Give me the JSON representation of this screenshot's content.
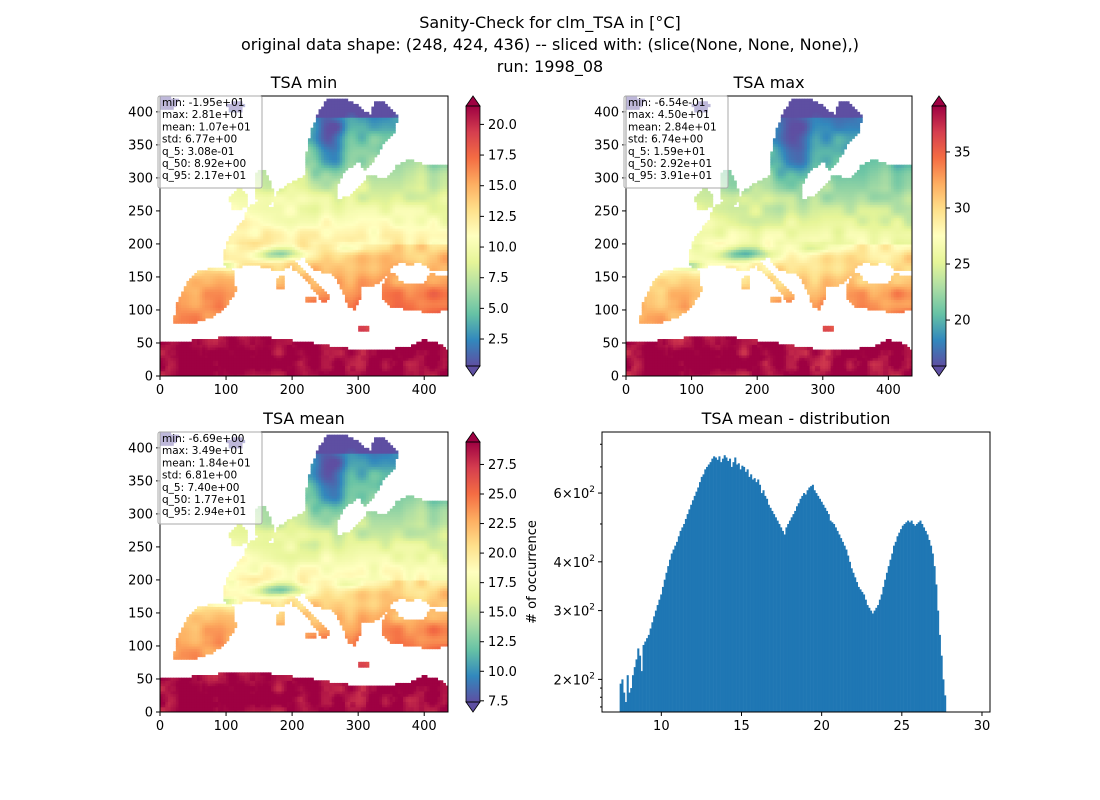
{
  "figure": {
    "title_lines": [
      "Sanity-Check for clm_TSA in [°C]",
      "original data shape: (248, 424, 436) -- sliced with: (slice(None, None, None),)",
      "run: 1998_08"
    ]
  },
  "colormap": {
    "name": "Spectral_r",
    "stops": [
      "#5e4fa2",
      "#3288bd",
      "#66c2a5",
      "#abdda4",
      "#e6f598",
      "#ffffbf",
      "#fee08b",
      "#fdae61",
      "#f46d43",
      "#d53e4f",
      "#9e0142"
    ]
  },
  "chart_data": [
    {
      "type": "heatmap",
      "title": "TSA min",
      "xlim": [
        0,
        436
      ],
      "ylim": [
        0,
        424
      ],
      "xticks": [
        0,
        100,
        200,
        300,
        400
      ],
      "yticks": [
        0,
        50,
        100,
        150,
        200,
        250,
        300,
        350,
        400
      ],
      "colorbar": {
        "range": [
          0.3,
          21.5
        ],
        "ticks": [
          "2.5",
          "5.0",
          "7.5",
          "10.0",
          "12.5",
          "15.0",
          "17.5",
          "20.0"
        ],
        "tick_values": [
          2.5,
          5.0,
          7.5,
          10.0,
          12.5,
          15.0,
          17.5,
          20.0
        ]
      },
      "stats": [
        "min: -1.95e+01",
        "max: 2.81e+01",
        "mean: 1.07e+01",
        "std: 6.77e+00",
        "q_5: 3.08e-01",
        "q_50: 8.92e+00",
        "q_95: 2.17e+01"
      ]
    },
    {
      "type": "heatmap",
      "title": "TSA max",
      "xlim": [
        0,
        436
      ],
      "ylim": [
        0,
        424
      ],
      "xticks": [
        0,
        100,
        200,
        300,
        400
      ],
      "yticks": [
        0,
        50,
        100,
        150,
        200,
        250,
        300,
        350,
        400
      ],
      "colorbar": {
        "range": [
          15.9,
          39.1
        ],
        "ticks": [
          "20",
          "25",
          "30",
          "35"
        ],
        "tick_values": [
          20,
          25,
          30,
          35
        ]
      },
      "stats": [
        "min: -6.54e-01",
        "max: 4.50e+01",
        "mean: 2.84e+01",
        "std: 6.74e+00",
        "q_5: 1.59e+01",
        "q_50: 2.92e+01",
        "q_95: 3.91e+01"
      ]
    },
    {
      "type": "heatmap",
      "title": "TSA mean",
      "xlim": [
        0,
        436
      ],
      "ylim": [
        0,
        424
      ],
      "xticks": [
        0,
        100,
        200,
        300,
        400
      ],
      "yticks": [
        0,
        50,
        100,
        150,
        200,
        250,
        300,
        350,
        400
      ],
      "colorbar": {
        "range": [
          7.4,
          29.4
        ],
        "ticks": [
          "7.5",
          "10.0",
          "12.5",
          "15.0",
          "17.5",
          "20.0",
          "22.5",
          "25.0",
          "27.5"
        ],
        "tick_values": [
          7.5,
          10.0,
          12.5,
          15.0,
          17.5,
          20.0,
          22.5,
          25.0,
          27.5
        ]
      },
      "stats": [
        "min: -6.69e+00",
        "max: 3.49e+01",
        "mean: 1.84e+01",
        "std: 6.81e+00",
        "q_5: 7.40e+00",
        "q_50: 1.77e+01",
        "q_95: 2.94e+01"
      ]
    },
    {
      "type": "bar",
      "title": "TSA mean - distribution",
      "ylabel": "# of occurrence",
      "yscale": "log",
      "color": "#1f77b4",
      "xlim": [
        6.3,
        30.5
      ],
      "ylim": [
        165,
        860
      ],
      "xticks": [
        10,
        15,
        20,
        25,
        30
      ],
      "yticks": [
        {
          "value": 200,
          "base": "2",
          "exp": "2"
        },
        {
          "value": 300,
          "base": "3",
          "exp": "2"
        },
        {
          "value": 400,
          "base": "4",
          "exp": "2"
        },
        {
          "value": 600,
          "base": "6",
          "exp": "2"
        }
      ],
      "bins": {
        "start": 7.4,
        "width": 0.11
      },
      "counts": [
        195,
        200,
        185,
        175,
        205,
        185,
        190,
        205,
        215,
        225,
        240,
        230,
        210,
        245,
        250,
        255,
        260,
        270,
        280,
        290,
        300,
        310,
        320,
        330,
        345,
        360,
        375,
        390,
        405,
        420,
        430,
        440,
        450,
        465,
        480,
        490,
        500,
        515,
        530,
        545,
        560,
        575,
        590,
        605,
        620,
        640,
        660,
        670,
        690,
        700,
        710,
        720,
        735,
        745,
        740,
        730,
        745,
        720,
        735,
        750,
        740,
        725,
        735,
        700,
        720,
        740,
        710,
        715,
        690,
        705,
        700,
        680,
        690,
        660,
        670,
        650,
        655,
        640,
        650,
        630,
        600,
        610,
        590,
        580,
        560,
        550,
        540,
        530,
        520,
        510,
        500,
        490,
        480,
        470,
        490,
        500,
        510,
        520,
        530,
        540,
        555,
        565,
        580,
        590,
        600,
        595,
        610,
        620,
        625,
        630,
        610,
        600,
        590,
        580,
        570,
        560,
        550,
        540,
        530,
        510,
        505,
        500,
        490,
        480,
        470,
        460,
        450,
        440,
        430,
        415,
        400,
        385,
        375,
        365,
        355,
        345,
        340,
        335,
        330,
        320,
        310,
        305,
        300,
        295,
        300,
        305,
        310,
        320,
        330,
        345,
        360,
        375,
        390,
        405,
        420,
        440,
        450,
        465,
        475,
        485,
        495,
        500,
        505,
        510,
        505,
        510,
        500,
        495,
        500,
        505,
        510,
        500,
        490,
        480,
        470,
        455,
        440,
        420,
        390,
        350,
        300,
        260,
        230,
        200,
        182
      ]
    }
  ]
}
